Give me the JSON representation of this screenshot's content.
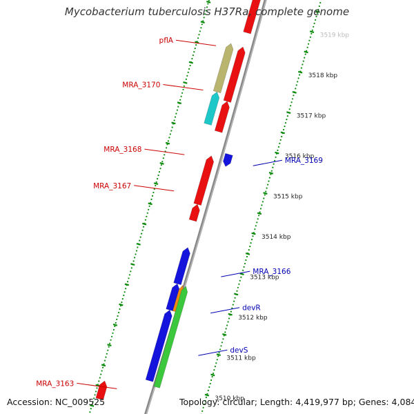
{
  "title": "Mycobacterium tuberculosis H37Ra, complete genome",
  "footer": {
    "accession": "Accession: NC_009525",
    "topology": "Topology: circular; Length: 4,419,977 bp; Genes: 4,084"
  },
  "colors": {
    "forward_strand": "#e81010",
    "reverse_strand": "#1414dc",
    "pflA": "#b9b46e",
    "MRA_3170": "#1ec8c8",
    "devR": "#f08c14",
    "devS": "#3cc83c",
    "axis": "#888888",
    "ticks": "#0a8a0a",
    "left_label": "#cc0000",
    "right_label": "#0000b4"
  },
  "ruler": {
    "unit": "kbp",
    "ticks": [
      {
        "kbp": 3510,
        "label": "3510 kbp"
      },
      {
        "kbp": 3511,
        "label": "3511 kbp"
      },
      {
        "kbp": 3512,
        "label": "3512 kbp"
      },
      {
        "kbp": 3513,
        "label": "3513 kbp"
      },
      {
        "kbp": 3514,
        "label": "3514 kbp"
      },
      {
        "kbp": 3515,
        "label": "3515 kbp"
      },
      {
        "kbp": 3516,
        "label": "3516 kbp"
      },
      {
        "kbp": 3517,
        "label": "3517 kbp"
      },
      {
        "kbp": 3518,
        "label": "3518 kbp"
      },
      {
        "kbp": 3519,
        "label": "3519 kbp"
      }
    ]
  },
  "genes": [
    {
      "name": "",
      "strand": "+",
      "start_kbp": 3518.55,
      "end_kbp": 3519.9,
      "color": "#e81010"
    },
    {
      "name": "",
      "strand": "+",
      "start_kbp": 3516.85,
      "end_kbp": 3518.2,
      "color": "#e81010"
    },
    {
      "name": "",
      "strand": "+",
      "start_kbp": 3516.1,
      "end_kbp": 3516.85,
      "color": "#e81010"
    },
    {
      "name": "pflA",
      "strand": "+",
      "start_kbp": 3517.0,
      "end_kbp": 3518.2,
      "color": "#b9b46e"
    },
    {
      "name": "MRA_3170",
      "strand": "+",
      "start_kbp": 3516.2,
      "end_kbp": 3517.0,
      "color": "#1ec8c8"
    },
    {
      "name": "MRA_3169",
      "strand": "-",
      "start_kbp": 3515.35,
      "end_kbp": 3515.65,
      "color": "#1414dc"
    },
    {
      "name": "MRA_3168",
      "strand": "+",
      "start_kbp": 3514.3,
      "end_kbp": 3515.5,
      "color": "#e81010"
    },
    {
      "name": "MRA_3167",
      "strand": "+",
      "start_kbp": 3513.9,
      "end_kbp": 3514.3,
      "color": "#e81010"
    },
    {
      "name": "MRA_3166",
      "strand": "+",
      "start_kbp": 3512.35,
      "end_kbp": 3513.25,
      "color": "#1414dc"
    },
    {
      "name": "",
      "strand": "+",
      "start_kbp": 3511.7,
      "end_kbp": 3512.35,
      "color": "#1414dc"
    },
    {
      "name": "",
      "strand": "+",
      "start_kbp": 3509.95,
      "end_kbp": 3511.7,
      "color": "#1414dc"
    },
    {
      "name": "devR",
      "strand": "+",
      "start_kbp": 3511.7,
      "end_kbp": 3512.35,
      "color": "#f08c14"
    },
    {
      "name": "devS",
      "strand": "+",
      "start_kbp": 3509.85,
      "end_kbp": 3512.35,
      "color": "#3cc83c"
    },
    {
      "name": "MRA_3163",
      "strand": "+",
      "start_kbp": 3509.2,
      "end_kbp": 3509.65,
      "color": "#e81010"
    }
  ],
  "labels": {
    "left": [
      {
        "text": "pflA",
        "kbp": 3518.05
      },
      {
        "text": "MRA_3170",
        "kbp": 3516.95
      },
      {
        "text": "MRA_3168",
        "kbp": 3515.35
      },
      {
        "text": "MRA_3167",
        "kbp": 3514.45
      },
      {
        "text": "MRA_3163",
        "kbp": 3509.55
      }
    ],
    "right": [
      {
        "text": "MRA_3169",
        "kbp": 3515.55
      },
      {
        "text": "MRA_3166",
        "kbp": 3512.8
      },
      {
        "text": "devR",
        "kbp": 3511.9
      },
      {
        "text": "devS",
        "kbp": 3510.85
      }
    ]
  }
}
